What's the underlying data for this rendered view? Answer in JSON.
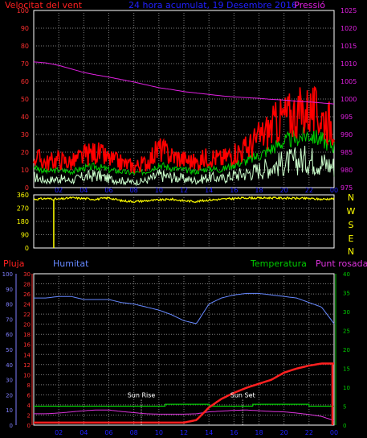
{
  "header": {
    "left_label": "Velocitat del vent",
    "center_label": "24 hora acumulat, 19 Desembre 2016",
    "right_label": "Pressió"
  },
  "middle": {
    "compass_labels": [
      "N",
      "W",
      "S",
      "E",
      "N"
    ]
  },
  "bottom_header": {
    "rain": "Pluja",
    "humidity": "Humitat",
    "temperature": "Temperatura",
    "dewpoint": "Punt rosada"
  },
  "annotations": {
    "sunrise": "Sun Rise",
    "sunset": "Sun Set"
  },
  "colors": {
    "wind_label": "#ff2020",
    "title": "#2020ff",
    "pressure": "#e020e0",
    "wind_max": "#ff0000",
    "wind_avg": "#00cc00",
    "wind_min": "#ccffcc",
    "direction": "#ffff00",
    "rain": "#ff2020",
    "humidity": "#6688ff",
    "temperature": "#00cc00",
    "dewpoint": "#dd33dd",
    "axis_rain": "#ff3030",
    "axis_humidity": "#8080ff",
    "axis_temp": "#00cc00",
    "grid": "#808080"
  },
  "x_ticks": [
    "02",
    "04",
    "06",
    "08",
    "10",
    "12",
    "14",
    "16",
    "18",
    "20",
    "22",
    "00"
  ],
  "chart_data": [
    {
      "type": "line",
      "title": "24 hora acumulat, 19 Desembre 2016",
      "left_axis": {
        "ticks": [
          0,
          10,
          20,
          30,
          40,
          50,
          60,
          70,
          80,
          90,
          100
        ],
        "ylim": [
          0,
          100
        ]
      },
      "right_axis": {
        "ticks": [
          975,
          980,
          985,
          990,
          995,
          1000,
          1005,
          1010,
          1015,
          1020,
          1025
        ],
        "ylim": [
          975,
          1025
        ]
      },
      "x_hours": [
        0,
        1,
        2,
        3,
        4,
        5,
        6,
        7,
        8,
        9,
        10,
        11,
        12,
        13,
        14,
        15,
        16,
        17,
        18,
        19,
        20,
        21,
        22,
        23,
        24
      ],
      "series": [
        {
          "name": "Velocitat del vent",
          "role": "gust",
          "values": [
            18,
            14,
            16,
            14,
            18,
            20,
            16,
            14,
            12,
            14,
            22,
            18,
            16,
            14,
            18,
            16,
            20,
            22,
            28,
            34,
            40,
            42,
            44,
            40,
            36
          ]
        },
        {
          "name": "Velocitat del vent",
          "role": "average",
          "values": [
            12,
            9,
            10,
            9,
            11,
            12,
            10,
            9,
            8,
            9,
            13,
            11,
            10,
            9,
            11,
            10,
            13,
            15,
            18,
            22,
            26,
            28,
            30,
            27,
            23
          ]
        },
        {
          "name": "Velocitat del vent",
          "role": "low",
          "values": [
            6,
            4,
            5,
            4,
            6,
            7,
            5,
            4,
            3,
            4,
            7,
            6,
            5,
            4,
            6,
            5,
            7,
            8,
            10,
            12,
            14,
            15,
            16,
            14,
            12
          ]
        },
        {
          "name": "Pressió",
          "axis": "right",
          "values": [
            1010.5,
            1010.2,
            1009.5,
            1008.5,
            1007.5,
            1006.8,
            1006.2,
            1005.5,
            1004.8,
            1004.0,
            1003.2,
            1002.7,
            1002.1,
            1001.7,
            1001.3,
            1000.9,
            1000.6,
            1000.4,
            1000.2,
            999.9,
            999.7,
            999.4,
            999.2,
            998.9,
            998.6
          ]
        }
      ]
    },
    {
      "type": "line",
      "left_axis": {
        "ticks": [
          0,
          90,
          180,
          270,
          360
        ],
        "ylim": [
          0,
          360
        ]
      },
      "x_hours": [
        0,
        1,
        2,
        3,
        4,
        5,
        6,
        7,
        8,
        9,
        10,
        11,
        12,
        13,
        14,
        15,
        16,
        17,
        18,
        19,
        20,
        21,
        22,
        23,
        24
      ],
      "series": [
        {
          "name": "direction",
          "values": [
            330,
            335,
            330,
            340,
            335,
            330,
            340,
            320,
            315,
            320,
            325,
            330,
            320,
            315,
            325,
            330,
            335,
            340,
            338,
            340,
            338,
            336,
            335,
            330,
            335
          ]
        }
      ],
      "spike": {
        "hour": 1.6,
        "value": 0
      }
    },
    {
      "type": "line",
      "axes": {
        "rain": {
          "ticks": [
            0,
            2,
            4,
            6,
            8,
            10,
            12,
            14,
            16,
            18,
            20,
            22,
            24,
            26,
            28,
            30
          ],
          "ylim": [
            0,
            30
          ]
        },
        "humidity": {
          "ticks": [
            0,
            10,
            20,
            30,
            40,
            50,
            60,
            70,
            80,
            90,
            100
          ],
          "ylim": [
            0,
            100
          ]
        },
        "temperature": {
          "ticks": [
            0,
            5,
            10,
            15,
            20,
            25,
            30,
            35,
            40
          ],
          "ylim": [
            0,
            40
          ]
        }
      },
      "x_hours": [
        0,
        1,
        2,
        3,
        4,
        5,
        6,
        7,
        8,
        9,
        10,
        11,
        12,
        13,
        14,
        15,
        16,
        17,
        18,
        19,
        20,
        21,
        22,
        23,
        24
      ],
      "series": [
        {
          "name": "Pluja",
          "axis": "rain",
          "values": [
            0.5,
            0.5,
            0.5,
            0.5,
            0.5,
            0.5,
            0.5,
            0.5,
            0.5,
            0.5,
            0.5,
            0.5,
            0.5,
            1.0,
            3.5,
            5.2,
            6.4,
            7.4,
            8.2,
            9.0,
            10.4,
            11.2,
            11.8,
            12.2,
            12.2
          ]
        },
        {
          "name": "Humitat",
          "axis": "humidity",
          "values": [
            84,
            84,
            85,
            85,
            83,
            83,
            83,
            81,
            80,
            78,
            76,
            73,
            69,
            67,
            80,
            84,
            86,
            87,
            87,
            86,
            85,
            84,
            81,
            78,
            67
          ]
        },
        {
          "name": "Temperatura",
          "axis": "temperature",
          "values": [
            5,
            5,
            5,
            5,
            5,
            5,
            5,
            5,
            5,
            5,
            5,
            5.5,
            5.5,
            5.5,
            5,
            5,
            5,
            5,
            5.5,
            5.5,
            5.5,
            5.5,
            5,
            5,
            5
          ]
        },
        {
          "name": "Punt rosada",
          "axis": "temperature",
          "values": [
            3.0,
            3.0,
            3.2,
            3.5,
            3.8,
            4.0,
            4.0,
            3.6,
            3.3,
            3.0,
            2.9,
            2.9,
            2.9,
            3.0,
            3.5,
            3.7,
            3.9,
            4.0,
            3.8,
            3.6,
            3.5,
            3.2,
            2.8,
            2.3,
            1.2
          ]
        }
      ],
      "markers": {
        "sunrise_hour": 8.6,
        "sunset_hour": 16.7
      }
    }
  ]
}
